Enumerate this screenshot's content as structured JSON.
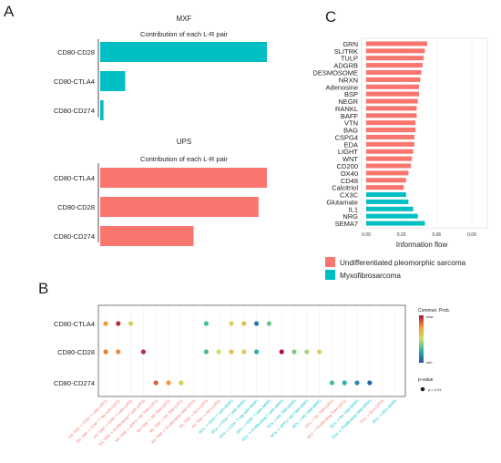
{
  "panel_labels": {
    "a": "A",
    "b": "B",
    "c": "C"
  },
  "colors": {
    "ups": "#f8766d",
    "mxf": "#00bfc4"
  },
  "panel_a": {
    "mxf": {
      "title": "MXF",
      "subtitle": "Contribution of each L-R pair",
      "chart_data": {
        "type": "bar",
        "orientation": "horizontal",
        "categories": [
          "CD80-CD28",
          "CD80-CTLA4",
          "CD80-CD274"
        ],
        "values": [
          1.0,
          0.15,
          0.02
        ],
        "color": "#00bfc4"
      }
    },
    "ups": {
      "title": "UPS",
      "subtitle": "Contribution of each L-R pair",
      "chart_data": {
        "type": "bar",
        "orientation": "horizontal",
        "categories": [
          "CD80-CTLA4",
          "CD80-CD28",
          "CD80-CD274"
        ],
        "values": [
          1.0,
          0.95,
          0.56
        ],
        "color": "#f8766d"
      }
    }
  },
  "panel_c": {
    "xlabel": "Information flow",
    "chart_data": {
      "type": "bar",
      "orientation": "horizontal",
      "categories": [
        "GRN",
        "SLITRK",
        "TULP",
        "ADGRB",
        "DESMOSOME",
        "NRXN",
        "Adenosine",
        "BSP",
        "NEGR",
        "RANKL",
        "BAFF",
        "VTN",
        "BAG",
        "CSPG4",
        "EDA",
        "LIGHT",
        "WNT",
        "CD200",
        "OX40",
        "CD48",
        "Calcitriol",
        "CX3C",
        "Glutamate",
        "IL1",
        "NRG",
        "SEMA7"
      ],
      "values": [
        0.052,
        0.05,
        0.049,
        0.048,
        0.047,
        0.046,
        0.045,
        0.045,
        0.044,
        0.043,
        0.043,
        0.042,
        0.042,
        0.041,
        0.041,
        0.04,
        0.039,
        0.038,
        0.036,
        0.034,
        0.032,
        0.034,
        0.036,
        0.04,
        0.044,
        0.05
      ],
      "groups": [
        "Undifferentiated pleomorphic sarcoma",
        "Undifferentiated pleomorphic sarcoma",
        "Undifferentiated pleomorphic sarcoma",
        "Undifferentiated pleomorphic sarcoma",
        "Undifferentiated pleomorphic sarcoma",
        "Undifferentiated pleomorphic sarcoma",
        "Undifferentiated pleomorphic sarcoma",
        "Undifferentiated pleomorphic sarcoma",
        "Undifferentiated pleomorphic sarcoma",
        "Undifferentiated pleomorphic sarcoma",
        "Undifferentiated pleomorphic sarcoma",
        "Undifferentiated pleomorphic sarcoma",
        "Undifferentiated pleomorphic sarcoma",
        "Undifferentiated pleomorphic sarcoma",
        "Undifferentiated pleomorphic sarcoma",
        "Undifferentiated pleomorphic sarcoma",
        "Undifferentiated pleomorphic sarcoma",
        "Undifferentiated pleomorphic sarcoma",
        "Undifferentiated pleomorphic sarcoma",
        "Undifferentiated pleomorphic sarcoma",
        "Undifferentiated pleomorphic sarcoma",
        "Myxofibrosarcoma",
        "Myxofibrosarcoma",
        "Myxofibrosarcoma",
        "Myxofibrosarcoma",
        "Myxofibrosarcoma"
      ],
      "xticks": [
        "0.00",
        "0.03",
        "0.06",
        "0.09"
      ],
      "xlim": [
        0,
        0.09
      ]
    },
    "legend": [
      {
        "label": "Undifferentiated pleomorphic sarcoma",
        "color": "#f8766d"
      },
      {
        "label": "Myxofibrosarcoma",
        "color": "#00bfc4"
      }
    ]
  },
  "panel_b": {
    "legend_title": "Commun. Prob.",
    "legend_max": "max",
    "legend_min": "min",
    "pvalue_title": "p-value",
    "pvalue_label": "p < 0.01",
    "chart_data": {
      "type": "scatter",
      "rows": [
        "CD80-CTLA4",
        "CD80-CD28",
        "CD80-CD274"
      ],
      "columns": [
        {
          "label": "M1 TAM -> CD4+ T cells (UPS)",
          "group": "UPS"
        },
        {
          "label": "M1 TAM -> CD4+ T reg cells (UPS)",
          "group": "UPS"
        },
        {
          "label": "M1 TAM -> CD8+ T cells (UPS)",
          "group": "UPS"
        },
        {
          "label": "M1 TAM -> Proliferating T cells (UPS)",
          "group": "UPS"
        },
        {
          "label": "M1 TAM -> SPP1+ M2 TAM (UPS)",
          "group": "UPS"
        },
        {
          "label": "M1 TAM -> M2 TAM (UPS)",
          "group": "UPS"
        },
        {
          "label": "M1 TAM -> M1 TAM (UPS)",
          "group": "UPS"
        },
        {
          "label": "M1 TAM -> Proliferating TAM (UPS)",
          "group": "UPS"
        },
        {
          "label": "M1 TAM -> DCs (UPS)",
          "group": "UPS"
        },
        {
          "label": "M1 TAM -> DCs (UPS)",
          "group": "UPS"
        },
        {
          "label": "DCs -> CD4+ T cells (MXF)",
          "group": "MXF"
        },
        {
          "label": "DCs -> CD4+ T cells (MXF)",
          "group": "MXF"
        },
        {
          "label": "DCs -> CD4+ T reg cells (MXF)",
          "group": "MXF"
        },
        {
          "label": "DCs -> CD8+ T cells (MXF)",
          "group": "MXF"
        },
        {
          "label": "DCs -> Proliferating T cells (MXF)",
          "group": "MXF"
        },
        {
          "label": "DCs -> M1 TAM (MXF)",
          "group": "MXF"
        },
        {
          "label": "DCs -> SPP1+ M2 TAM (MXF)",
          "group": "MXF"
        },
        {
          "label": "DCs -> M2 TAM (MXF)",
          "group": "MXF"
        },
        {
          "label": "DCs -> M1 TAM (UPS)",
          "group": "UPS"
        },
        {
          "label": "DCs -> Proliferating TAM (UPS)",
          "group": "UPS"
        },
        {
          "label": "DCs -> M1 TAM (MXF)",
          "group": "MXF"
        },
        {
          "label": "DCs -> Proliferating TAM (MXF)",
          "group": "MXF"
        },
        {
          "label": "DCs -> DCs (UPS)",
          "group": "UPS"
        },
        {
          "label": "DCs -> DCs (MXF)",
          "group": "MXF"
        }
      ],
      "points": [
        {
          "row": 0,
          "col": 0,
          "prob": 0.75
        },
        {
          "row": 0,
          "col": 1,
          "prob": 0.95
        },
        {
          "row": 0,
          "col": 2,
          "prob": 0.55
        },
        {
          "row": 0,
          "col": 8,
          "prob": 0.3
        },
        {
          "row": 0,
          "col": 10,
          "prob": 0.55
        },
        {
          "row": 0,
          "col": 11,
          "prob": 0.6
        },
        {
          "row": 0,
          "col": 12,
          "prob": 0.1
        },
        {
          "row": 0,
          "col": 13,
          "prob": 0.35
        },
        {
          "row": 1,
          "col": 0,
          "prob": 0.8
        },
        {
          "row": 1,
          "col": 1,
          "prob": 0.78
        },
        {
          "row": 1,
          "col": 3,
          "prob": 0.95
        },
        {
          "row": 1,
          "col": 8,
          "prob": 0.3
        },
        {
          "row": 1,
          "col": 9,
          "prob": 0.5
        },
        {
          "row": 1,
          "col": 10,
          "prob": 0.6
        },
        {
          "row": 1,
          "col": 11,
          "prob": 0.55
        },
        {
          "row": 1,
          "col": 12,
          "prob": 0.25
        },
        {
          "row": 1,
          "col": 14,
          "prob": 1.0
        },
        {
          "row": 1,
          "col": 15,
          "prob": 0.38
        },
        {
          "row": 1,
          "col": 16,
          "prob": 0.45
        },
        {
          "row": 1,
          "col": 17,
          "prob": 0.55
        },
        {
          "row": 2,
          "col": 4,
          "prob": 0.85
        },
        {
          "row": 2,
          "col": 5,
          "prob": 0.75
        },
        {
          "row": 2,
          "col": 6,
          "prob": 0.58
        },
        {
          "row": 2,
          "col": 18,
          "prob": 0.3
        },
        {
          "row": 2,
          "col": 19,
          "prob": 0.25
        },
        {
          "row": 2,
          "col": 20,
          "prob": 0.15
        },
        {
          "row": 2,
          "col": 21,
          "prob": 0.05
        }
      ]
    }
  }
}
